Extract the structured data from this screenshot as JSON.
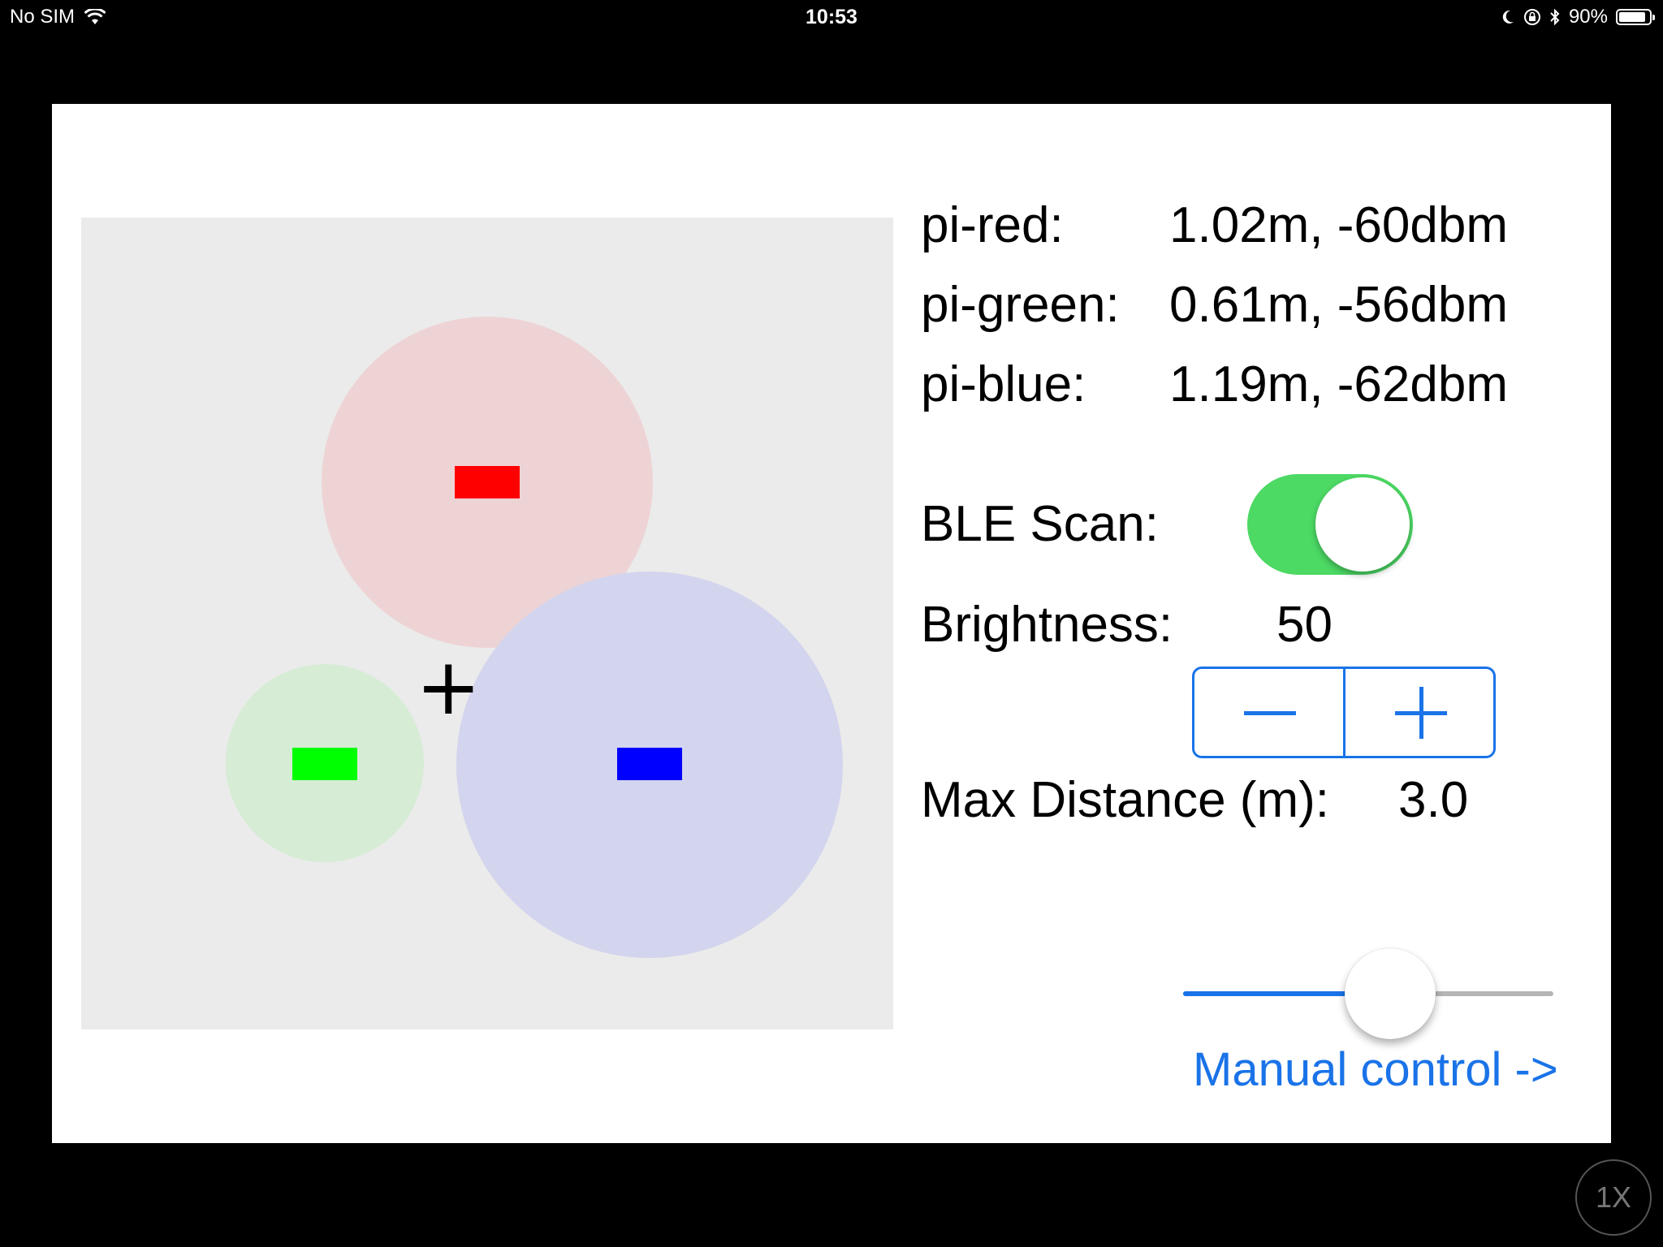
{
  "status_bar": {
    "carrier": "No SIM",
    "time": "10:53",
    "battery_percent": "90%",
    "battery_level": 0.9,
    "icons": [
      "wifi-icon",
      "moon-icon",
      "orientation-lock-icon",
      "bluetooth-icon",
      "battery-icon"
    ]
  },
  "beacons": [
    {
      "name": "pi-red",
      "label": "pi-red:",
      "reading": "1.02m, -60dbm",
      "color": "#ff0000",
      "zone_color": "#eed3d5"
    },
    {
      "name": "pi-green",
      "label": "pi-green:",
      "reading": "0.61m, -56dbm",
      "color": "#00ff00",
      "zone_color": "#d6ecd5"
    },
    {
      "name": "pi-blue",
      "label": "pi-blue:",
      "reading": "1.19m, -62dbm",
      "color": "#0000ff",
      "zone_color": "#d3d4ee"
    }
  ],
  "controls": {
    "ble_scan_label": "BLE Scan:",
    "ble_scan_on": true,
    "brightness_label": "Brightness:",
    "brightness_value": "50",
    "max_distance_label": "Max Distance (m):",
    "max_distance_value": "3.0",
    "max_distance_fraction": 0.56,
    "manual_control_link": "Manual control ->"
  },
  "map": {
    "position_marker": "+"
  },
  "overlay": {
    "zoom_badge": "1X"
  },
  "colors": {
    "accent": "#1a73e8",
    "toggle_on": "#4cd964"
  }
}
